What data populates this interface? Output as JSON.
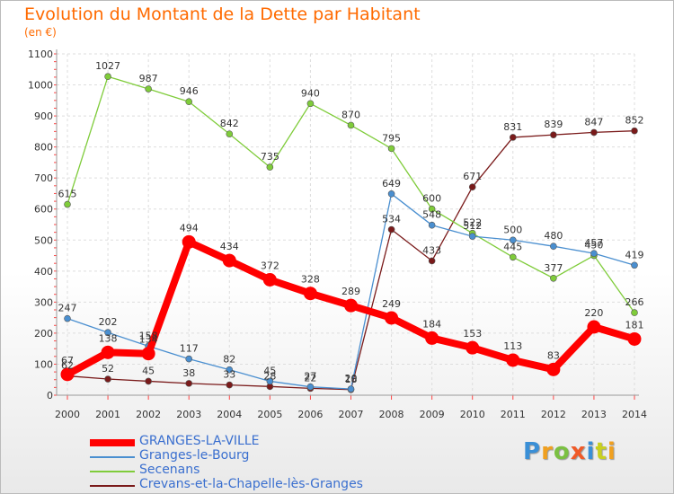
{
  "title": "Evolution du Montant de la Dette par Habitant",
  "unit": "(en €)",
  "logo": "Proxiti",
  "chart_data": {
    "type": "line",
    "x": [
      2000,
      2001,
      2002,
      2003,
      2004,
      2005,
      2006,
      2007,
      2008,
      2009,
      2010,
      2011,
      2012,
      2013,
      2014
    ],
    "ylim": [
      0,
      1100
    ],
    "yticks": [
      0,
      100,
      200,
      300,
      400,
      500,
      600,
      700,
      800,
      900,
      1000,
      1100
    ],
    "grid": true,
    "legend_position": "bottom-left",
    "series": [
      {
        "name": "GRANGES-LA-VILLE",
        "color": "#ff0000",
        "values": [
          67,
          138,
          134,
          494,
          434,
          372,
          328,
          289,
          249,
          184,
          153,
          113,
          83,
          220,
          181
        ]
      },
      {
        "name": "Granges-le-Bourg",
        "color": "#4a8fd0",
        "values": [
          247,
          202,
          158,
          117,
          82,
          45,
          27,
          20,
          649,
          548,
          512,
          500,
          480,
          457,
          419
        ]
      },
      {
        "name": "Secenans",
        "color": "#7fcc3a",
        "values": [
          615,
          1027,
          987,
          946,
          842,
          735,
          940,
          870,
          795,
          600,
          522,
          445,
          377,
          450,
          266
        ]
      },
      {
        "name": "Crevans-et-la-Chapelle-lès-Granges",
        "color": "#7a1a1a",
        "values": [
          62,
          52,
          45,
          38,
          33,
          28,
          22,
          18,
          534,
          433,
          671,
          831,
          839,
          847,
          852
        ]
      }
    ]
  }
}
